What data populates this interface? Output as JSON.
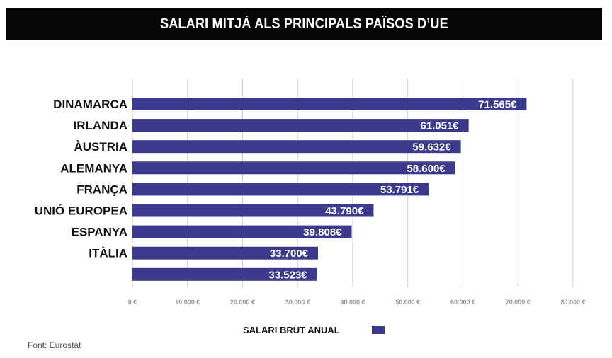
{
  "header": {
    "title": "SALARI MITJÀ ALS PRINCIPALS PAÏSOS D’UE"
  },
  "legend": {
    "label": "SALARI BRUT ANUAL"
  },
  "source": {
    "text": "Font: Eurostat"
  },
  "colors": {
    "bar": "#3c3a8c",
    "title_background": "#050505",
    "grid": "#cccccc",
    "tick_text": "#9a9a9a",
    "category_text": "#111111",
    "value_text": "#ffffff"
  },
  "chart_data": {
    "type": "bar",
    "orientation": "horizontal",
    "title": "SALARI MITJÀ ALS PRINCIPALS PAÏSOS D’UE",
    "xlabel": "",
    "ylabel": "",
    "categories": [
      "DINAMARCA",
      "IRLANDA",
      "ÀUSTRIA",
      "ALEMANYA",
      "FRANÇA",
      "UNIÓ EUROPEA",
      "ESPANYA",
      "ITÀLIA",
      ""
    ],
    "series": [
      {
        "name": "SALARI BRUT ANUAL",
        "values": [
          71565,
          61051,
          59632,
          58600,
          53791,
          43790,
          39808,
          33700,
          33523
        ],
        "value_labels": [
          "71.565€",
          "61.051€",
          "59.632€",
          "58.600€",
          "53.791€",
          "43.790€",
          "39.808€",
          "33.700€",
          "33.523€"
        ]
      }
    ],
    "xlim": [
      0,
      80000
    ],
    "x_ticks": [
      0,
      10000,
      20000,
      30000,
      40000,
      50000,
      60000,
      70000,
      80000
    ],
    "x_tick_labels": [
      "0 €",
      "10.000 €",
      "20.000 €",
      "30.000 €",
      "40.000 €",
      "50.000 €",
      "60.000 €",
      "70.000 €",
      "80.000 €"
    ],
    "grid": true,
    "legend_position": "bottom-center"
  }
}
